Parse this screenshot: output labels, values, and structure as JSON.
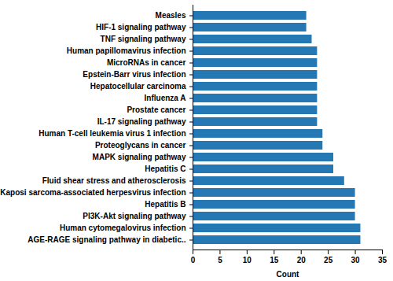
{
  "chart_data": {
    "type": "bar",
    "orientation": "horizontal",
    "x_label": "Count",
    "categories": [
      "Measles",
      "HIF-1 signaling pathway",
      "TNF signaling pathway",
      "Human papillomavirus infection",
      "MicroRNAs in cancer",
      "Epstein-Barr virus infection",
      "Hepatocellular carcinoma",
      "Influenza A",
      "Prostate cancer",
      "IL-17 signaling pathway",
      "Human T-cell leukemia virus 1 infection",
      "Proteoglycans in cancer",
      "MAPK signaling pathway",
      "Hepatitis C",
      "Fluid shear stress and atherosclerosis",
      "Kaposi sarcoma-associated herpesvirus infection",
      "Hepatitis B",
      "PI3K-Akt signaling pathway",
      "Human cytomegalovirus infection",
      "AGE-RAGE signaling pathway in diabetic.."
    ],
    "values": [
      21,
      21,
      22,
      23,
      23,
      23,
      23,
      23,
      23,
      23,
      24,
      24,
      26,
      26,
      28,
      30,
      30,
      30,
      31,
      31
    ],
    "color": "#2478b4",
    "xlim": [
      0,
      35
    ],
    "xticks": [
      0,
      5,
      10,
      15,
      20,
      25,
      30,
      35
    ],
    "grid": false
  }
}
